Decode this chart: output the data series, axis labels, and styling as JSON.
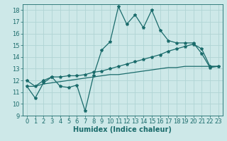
{
  "xlabel": "Humidex (Indice chaleur)",
  "xlim": [
    -0.5,
    23.5
  ],
  "ylim": [
    9,
    18.5
  ],
  "yticks": [
    9,
    10,
    11,
    12,
    13,
    14,
    15,
    16,
    17,
    18
  ],
  "xticks": [
    0,
    1,
    2,
    3,
    4,
    5,
    6,
    7,
    8,
    9,
    10,
    11,
    12,
    13,
    14,
    15,
    16,
    17,
    18,
    19,
    20,
    21,
    22,
    23
  ],
  "bg_color": "#cde8e8",
  "grid_color": "#b0d4d4",
  "line_color": "#1a6b6b",
  "line1_x": [
    0,
    1,
    2,
    3,
    4,
    5,
    6,
    7,
    8,
    9,
    10,
    11,
    12,
    13,
    14,
    15,
    16,
    17,
    18,
    19,
    20,
    21,
    22,
    23
  ],
  "line1_y": [
    11.5,
    10.5,
    11.8,
    12.3,
    11.5,
    11.4,
    11.6,
    9.4,
    12.4,
    14.6,
    15.3,
    18.3,
    16.8,
    17.6,
    16.5,
    18.0,
    16.3,
    15.4,
    15.2,
    15.2,
    15.2,
    14.3,
    13.1,
    13.2
  ],
  "line2_x": [
    0,
    1,
    2,
    3,
    4,
    5,
    6,
    7,
    8,
    9,
    10,
    11,
    12,
    13,
    14,
    15,
    16,
    17,
    18,
    19,
    20,
    21,
    22,
    23
  ],
  "line2_y": [
    12.0,
    11.5,
    12.0,
    12.3,
    12.3,
    12.4,
    12.4,
    12.5,
    12.7,
    12.8,
    13.0,
    13.2,
    13.4,
    13.6,
    13.8,
    14.0,
    14.2,
    14.5,
    14.7,
    14.9,
    15.1,
    14.7,
    13.2,
    13.2
  ],
  "line3_x": [
    0,
    1,
    2,
    3,
    4,
    5,
    6,
    7,
    8,
    9,
    10,
    11,
    12,
    13,
    14,
    15,
    16,
    17,
    18,
    19,
    20,
    21,
    22,
    23
  ],
  "line3_y": [
    11.5,
    11.5,
    11.7,
    11.8,
    11.9,
    12.0,
    12.1,
    12.2,
    12.3,
    12.4,
    12.5,
    12.5,
    12.6,
    12.7,
    12.8,
    12.9,
    13.0,
    13.1,
    13.1,
    13.2,
    13.2,
    13.2,
    13.2,
    13.2
  ],
  "marker": "*",
  "marker_size": 3,
  "linewidth": 0.9,
  "fontsize_label": 7,
  "fontsize_tick": 6
}
